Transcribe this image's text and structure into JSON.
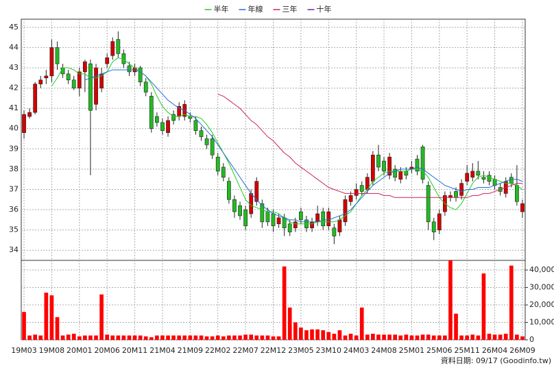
{
  "chart_data": {
    "type": "candlestick",
    "legend": {
      "position": "top"
    },
    "grid": true,
    "up_color": "#d40000",
    "down_color": "#22bb22",
    "categories": [
      "19M03",
      null,
      null,
      null,
      null,
      "19M08",
      null,
      null,
      null,
      null,
      "20M01",
      null,
      null,
      null,
      null,
      "20M06",
      null,
      null,
      null,
      null,
      "20M11",
      null,
      null,
      null,
      null,
      "21M04",
      null,
      null,
      null,
      null,
      "21M09",
      null,
      null,
      null,
      null,
      "22M02",
      null,
      null,
      null,
      null,
      "22M07",
      null,
      null,
      null,
      null,
      "22M12",
      null,
      null,
      null,
      null,
      "23M05",
      null,
      null,
      null,
      null,
      "23M10",
      null,
      null,
      null,
      null,
      "24M03",
      null,
      null,
      null,
      null,
      "24M08",
      null,
      null,
      null,
      null,
      "25M01",
      null,
      null,
      null,
      null,
      "25M06",
      null,
      null,
      null,
      null,
      "25M11",
      null,
      null,
      null,
      null,
      "26M04",
      null,
      null,
      null,
      null,
      "26M09"
    ],
    "open": [
      39.8,
      40.6,
      40.8,
      42.2,
      42.5,
      42.6,
      44.0,
      43.0,
      42.7,
      42.4,
      42.0,
      42.8,
      43.2,
      41.2,
      42.0,
      43.2,
      43.6,
      44.4,
      43.7,
      43.1,
      42.8,
      43.0,
      42.3,
      41.6,
      40.6,
      40.3,
      39.8,
      40.7,
      40.6,
      40.6,
      40.6,
      40.4,
      39.9,
      39.5,
      39.5,
      38.6,
      38.1,
      37.4,
      36.5,
      36.2,
      36.0,
      35.8,
      36.4,
      36.3,
      35.9,
      35.8,
      35.3,
      35.6,
      35.3,
      35.1,
      35.9,
      35.5,
      35.1,
      35.4,
      35.9,
      35.2,
      35.1,
      34.9,
      35.4,
      36.4,
      36.7,
      37.2,
      37.0,
      37.4,
      38.7,
      38.4,
      37.7,
      38.0,
      37.5,
      37.9,
      38.0,
      38.5,
      39.1,
      37.2,
      35.4,
      35.0,
      35.9,
      36.6,
      36.9,
      36.7,
      37.4,
      37.6,
      37.9,
      37.6,
      37.7,
      37.5,
      37.1,
      36.8,
      37.6,
      37.2,
      35.9
    ],
    "high": [
      40.9,
      41.0,
      42.3,
      42.6,
      42.9,
      44.4,
      44.3,
      43.2,
      42.9,
      42.6,
      43.0,
      43.4,
      43.4,
      43.2,
      43.0,
      43.7,
      44.5,
      44.8,
      43.9,
      43.3,
      43.2,
      43.1,
      42.5,
      41.8,
      40.8,
      40.5,
      40.6,
      40.9,
      41.3,
      41.4,
      40.8,
      40.6,
      40.1,
      39.7,
      39.7,
      38.8,
      38.3,
      37.6,
      36.7,
      36.4,
      36.2,
      37.0,
      37.6,
      36.5,
      36.1,
      36.0,
      35.8,
      35.8,
      35.5,
      35.6,
      36.1,
      35.7,
      35.6,
      36.2,
      36.1,
      36.1,
      35.3,
      35.7,
      36.7,
      36.9,
      37.3,
      37.4,
      37.8,
      38.9,
      39.2,
      38.6,
      38.8,
      38.2,
      38.1,
      38.1,
      38.4,
      38.7,
      39.2,
      37.4,
      35.6,
      36.0,
      36.9,
      36.9,
      37.1,
      37.5,
      38.2,
      38.3,
      38.4,
      37.9,
      37.9,
      37.7,
      37.3,
      37.6,
      37.8,
      38.2,
      36.5
    ],
    "low": [
      39.5,
      40.5,
      40.7,
      42.0,
      42.2,
      42.3,
      42.9,
      42.5,
      42.2,
      41.9,
      41.6,
      41.8,
      37.7,
      40.9,
      41.8,
      43.0,
      43.4,
      43.5,
      43.0,
      42.6,
      42.6,
      42.1,
      41.6,
      39.8,
      40.1,
      39.7,
      39.6,
      40.2,
      40.4,
      40.4,
      40.3,
      39.7,
      39.4,
      39.0,
      38.5,
      37.7,
      37.4,
      36.3,
      35.6,
      35.5,
      35.0,
      35.6,
      36.2,
      35.1,
      35.2,
      34.9,
      35.1,
      34.7,
      34.7,
      34.9,
      35.3,
      34.9,
      34.9,
      35.2,
      35.0,
      35.0,
      34.3,
      34.7,
      35.2,
      36.2,
      36.5,
      36.7,
      36.8,
      37.2,
      37.9,
      37.7,
      37.5,
      37.4,
      37.3,
      37.5,
      37.8,
      37.7,
      37.3,
      35.0,
      34.5,
      34.8,
      35.7,
      36.4,
      36.4,
      36.5,
      37.2,
      37.4,
      37.5,
      37.3,
      37.2,
      37.0,
      36.7,
      36.6,
      37.1,
      36.2,
      35.6
    ],
    "close": [
      40.7,
      40.8,
      42.2,
      42.4,
      42.6,
      44.0,
      43.2,
      42.7,
      42.4,
      42.0,
      42.8,
      43.3,
      40.9,
      43.0,
      42.7,
      43.5,
      44.3,
      43.7,
      43.2,
      42.8,
      43.0,
      42.3,
      41.8,
      40.0,
      40.3,
      39.9,
      40.4,
      40.4,
      41.1,
      41.2,
      40.5,
      39.9,
      39.6,
      39.2,
      38.7,
      37.9,
      37.6,
      36.5,
      35.9,
      35.7,
      35.2,
      36.8,
      37.4,
      35.4,
      35.4,
      35.2,
      35.6,
      35.1,
      34.9,
      35.4,
      35.5,
      35.1,
      35.4,
      35.8,
      35.2,
      35.9,
      34.7,
      35.5,
      36.5,
      36.7,
      37.0,
      36.9,
      37.6,
      38.7,
      38.1,
      37.9,
      38.6,
      37.6,
      37.9,
      37.7,
      38.1,
      37.9,
      37.5,
      35.4,
      34.9,
      35.8,
      36.7,
      36.7,
      36.6,
      37.3,
      37.8,
      37.9,
      37.7,
      37.5,
      37.4,
      37.2,
      36.9,
      37.4,
      37.3,
      36.4,
      36.3
    ],
    "ylim": [
      33.5,
      45.4
    ],
    "yticks": [
      34,
      35,
      36,
      37,
      38,
      39,
      40,
      41,
      42,
      43,
      44,
      45
    ],
    "series": [
      {
        "name": "半年",
        "color": "#22cc22",
        "values": [
          null,
          null,
          null,
          null,
          null,
          42.1,
          42.5,
          43.0,
          43.0,
          42.9,
          42.7,
          42.7,
          42.5,
          42.5,
          42.6,
          42.8,
          43.3,
          43.5,
          43.4,
          43.2,
          43.0,
          42.8,
          42.6,
          42.2,
          41.6,
          41.1,
          40.8,
          40.6,
          40.6,
          40.7,
          40.6,
          40.6,
          40.5,
          40.2,
          39.8,
          39.3,
          38.8,
          38.3,
          37.7,
          37.1,
          36.5,
          36.2,
          36.1,
          36.0,
          35.9,
          35.9,
          35.8,
          35.6,
          35.4,
          35.3,
          35.3,
          35.3,
          35.3,
          35.4,
          35.4,
          35.4,
          35.4,
          35.5,
          35.7,
          35.9,
          36.3,
          36.7,
          37.0,
          37.4,
          37.6,
          37.8,
          37.9,
          37.9,
          37.9,
          37.9,
          38.0,
          38.0,
          37.9,
          37.6,
          37.1,
          36.6,
          36.3,
          36.1,
          36.0,
          36.3,
          36.8,
          37.3,
          37.6,
          37.7,
          37.6,
          37.5,
          37.4,
          37.3,
          37.3,
          37.2,
          37.0
        ]
      },
      {
        "name": "年線",
        "color": "#1f6fd6",
        "values": [
          null,
          null,
          null,
          null,
          null,
          null,
          null,
          null,
          null,
          null,
          null,
          42.4,
          42.5,
          42.6,
          42.7,
          42.8,
          42.9,
          42.9,
          42.9,
          42.9,
          42.9,
          42.8,
          42.6,
          42.3,
          42.0,
          41.7,
          41.4,
          41.2,
          41.0,
          40.9,
          40.7,
          40.5,
          40.2,
          39.9,
          39.6,
          39.2,
          38.8,
          38.4,
          38.0,
          37.6,
          37.2,
          36.8,
          36.5,
          36.2,
          36.0,
          35.8,
          35.7,
          35.6,
          35.5,
          35.5,
          35.4,
          35.4,
          35.4,
          35.4,
          35.5,
          35.5,
          35.6,
          35.7,
          35.8,
          36.0,
          36.3,
          36.6,
          36.9,
          37.2,
          37.4,
          37.6,
          37.8,
          37.9,
          38.0,
          38.0,
          38.0,
          38.1,
          38.0,
          37.8,
          37.6,
          37.4,
          37.2,
          37.1,
          37.0,
          36.9,
          37.0,
          37.0,
          37.1,
          37.1,
          37.1,
          37.2,
          37.3,
          37.4,
          37.5,
          37.5,
          37.4
        ]
      },
      {
        "name": "三年",
        "color": "#cc2255",
        "values": [
          null,
          null,
          null,
          null,
          null,
          null,
          null,
          null,
          null,
          null,
          null,
          null,
          null,
          null,
          null,
          null,
          null,
          null,
          null,
          null,
          null,
          null,
          null,
          null,
          null,
          null,
          null,
          null,
          null,
          null,
          null,
          null,
          null,
          null,
          null,
          41.7,
          41.6,
          41.4,
          41.2,
          41.0,
          40.7,
          40.4,
          40.2,
          39.9,
          39.6,
          39.4,
          39.1,
          38.8,
          38.6,
          38.3,
          38.1,
          37.9,
          37.7,
          37.5,
          37.3,
          37.1,
          37.0,
          36.9,
          36.8,
          36.8,
          36.8,
          36.8,
          36.8,
          36.8,
          36.8,
          36.7,
          36.7,
          36.6,
          36.6,
          36.6,
          36.6,
          36.6,
          36.6,
          36.6,
          36.6,
          36.6,
          36.6,
          36.6,
          36.6,
          36.6,
          36.6,
          36.7,
          36.7,
          36.8,
          36.8,
          36.9,
          37.0,
          37.1,
          37.2,
          37.3,
          37.3
        ]
      },
      {
        "name": "十年",
        "color": "#7a1fa0",
        "values": [
          null,
          null,
          null,
          null,
          null,
          null,
          null,
          null,
          null,
          null,
          null,
          null,
          null,
          null,
          null,
          null,
          null,
          null,
          null,
          null,
          null,
          null,
          null,
          null,
          null,
          null,
          null,
          null,
          null,
          null,
          null,
          null,
          null,
          null,
          null,
          null,
          null,
          null,
          null,
          null,
          null,
          null,
          null,
          null,
          null,
          null,
          null,
          null,
          null,
          null,
          null,
          null,
          null,
          null,
          null,
          null,
          null,
          null,
          null,
          null,
          null,
          null,
          null,
          null,
          null,
          null,
          null,
          null,
          null,
          null,
          null,
          null,
          null,
          null,
          null,
          null,
          null,
          null,
          null,
          null,
          null,
          null,
          null,
          null,
          null,
          null,
          null,
          null,
          null,
          null,
          null
        ]
      }
    ],
    "volume": {
      "color": "#ff0000",
      "values": [
        16000,
        2500,
        3000,
        2500,
        27000,
        25500,
        13000,
        2500,
        3000,
        3500,
        2000,
        2500,
        2500,
        2500,
        26000,
        3000,
        2500,
        2500,
        2500,
        2500,
        2500,
        2500,
        2000,
        1500,
        2500,
        2500,
        2500,
        2500,
        2500,
        2500,
        2500,
        2500,
        2500,
        2000,
        2000,
        2500,
        2000,
        2500,
        2500,
        2500,
        3000,
        3000,
        2500,
        2500,
        2500,
        2000,
        2000,
        42000,
        18500,
        10000,
        7000,
        5500,
        6000,
        6000,
        5500,
        4500,
        3500,
        5500,
        2500,
        3500,
        2500,
        18500,
        3000,
        3500,
        3000,
        3000,
        3000,
        3000,
        2500,
        3000,
        2500,
        2500,
        3000,
        3000,
        2500,
        2500,
        2500,
        45500,
        15000,
        2500,
        2500,
        3000,
        2500,
        38000,
        3500,
        3000,
        3000,
        3500,
        42500,
        3000,
        2000
      ],
      "ylim": [
        0,
        45500
      ],
      "yticks": [
        {
          "value": 0,
          "label": "0"
        },
        {
          "value": 10000,
          "label": "10,000"
        },
        {
          "value": 20000,
          "label": "20,000"
        },
        {
          "value": 30000,
          "label": "30,000"
        },
        {
          "value": 40000,
          "label": "40,000"
        }
      ]
    },
    "footnote": "資料日期: 09/17 (Goodinfo.tw)"
  }
}
